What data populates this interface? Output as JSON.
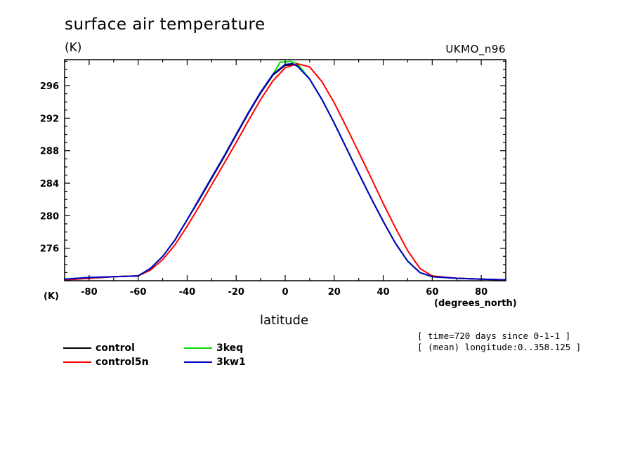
{
  "chart_data": {
    "type": "line",
    "title": "surface air temperature",
    "ylabel_top": "(K)",
    "ylabel_bottom": "(K)",
    "model_label": "UKMO_n96",
    "xlabel": "latitude",
    "xunits": "(degrees_north)",
    "xlim": [
      -90,
      90
    ],
    "ylim": [
      272,
      299.2
    ],
    "xticks": [
      -80,
      -60,
      -40,
      -20,
      0,
      20,
      40,
      60,
      80
    ],
    "xtick_labels": [
      "-80",
      "-60",
      "-40",
      "-20",
      "0",
      "20",
      "40",
      "60",
      "80"
    ],
    "yticks": [
      276,
      280,
      284,
      288,
      292,
      296
    ],
    "ytick_labels": [
      "276",
      "280",
      "284",
      "288",
      "292",
      "296"
    ],
    "grid": false,
    "legend_placement": "bottom-left",
    "meta": [
      "[ time=720 days since 0-1-1 ]",
      "[ (mean) longitude:0..358.125 ]"
    ],
    "series": [
      {
        "name": "control",
        "color": "#000000",
        "x": [
          -90,
          -80,
          -70,
          -60,
          -55,
          -50,
          -45,
          -40,
          -35,
          -30,
          -25,
          -20,
          -15,
          -10,
          -5,
          0,
          5,
          10,
          15,
          20,
          25,
          30,
          35,
          40,
          45,
          50,
          55,
          60,
          70,
          80,
          90
        ],
        "y": [
          272.1,
          272.3,
          272.5,
          272.6,
          273.5,
          275.0,
          277.0,
          279.5,
          282.0,
          284.6,
          287.2,
          289.9,
          292.6,
          295.1,
          297.3,
          298.5,
          298.6,
          296.8,
          294.3,
          291.4,
          288.3,
          285.2,
          282.2,
          279.3,
          276.6,
          274.4,
          273.0,
          272.5,
          272.3,
          272.2,
          272.1
        ]
      },
      {
        "name": "control5n",
        "color": "#ff0000",
        "x": [
          -90,
          -80,
          -70,
          -60,
          -55,
          -50,
          -45,
          -40,
          -35,
          -30,
          -25,
          -20,
          -15,
          -10,
          -5,
          0,
          5,
          10,
          15,
          20,
          25,
          30,
          35,
          40,
          45,
          50,
          55,
          60,
          70,
          80,
          90
        ],
        "y": [
          272.1,
          272.3,
          272.5,
          272.6,
          273.3,
          274.6,
          276.4,
          278.7,
          281.2,
          283.8,
          286.4,
          289.0,
          291.7,
          294.3,
          296.6,
          298.2,
          298.7,
          298.3,
          296.5,
          293.9,
          290.9,
          287.8,
          284.7,
          281.5,
          278.5,
          275.7,
          273.5,
          272.6,
          272.3,
          272.2,
          272.1
        ]
      },
      {
        "name": "3keq",
        "color": "#00dd00",
        "x": [
          -90,
          -80,
          -70,
          -60,
          -55,
          -50,
          -45,
          -40,
          -35,
          -30,
          -25,
          -20,
          -15,
          -10,
          -5,
          -2,
          0,
          2,
          5,
          10,
          15,
          20,
          25,
          30,
          35,
          40,
          45,
          50,
          55,
          60,
          70,
          80,
          90
        ],
        "y": [
          272.2,
          272.4,
          272.5,
          272.6,
          273.5,
          275.0,
          277.0,
          279.5,
          282.1,
          284.7,
          287.3,
          290.0,
          292.7,
          295.2,
          297.4,
          298.9,
          298.9,
          299.0,
          298.7,
          296.8,
          294.3,
          291.4,
          288.3,
          285.2,
          282.2,
          279.3,
          276.6,
          274.4,
          273.0,
          272.5,
          272.3,
          272.2,
          272.1
        ]
      },
      {
        "name": "3kw1",
        "color": "#0000cc",
        "x": [
          -90,
          -80,
          -70,
          -60,
          -55,
          -50,
          -45,
          -40,
          -35,
          -30,
          -25,
          -20,
          -15,
          -10,
          -5,
          0,
          3,
          5,
          10,
          15,
          20,
          25,
          30,
          35,
          40,
          45,
          50,
          55,
          60,
          70,
          80,
          90
        ],
        "y": [
          272.2,
          272.4,
          272.5,
          272.6,
          273.5,
          275.0,
          277.0,
          279.5,
          282.1,
          284.7,
          287.3,
          290.0,
          292.7,
          295.2,
          297.4,
          298.6,
          298.7,
          298.4,
          296.8,
          294.3,
          291.4,
          288.3,
          285.2,
          282.2,
          279.3,
          276.6,
          274.4,
          273.0,
          272.5,
          272.3,
          272.2,
          272.1
        ]
      }
    ]
  }
}
